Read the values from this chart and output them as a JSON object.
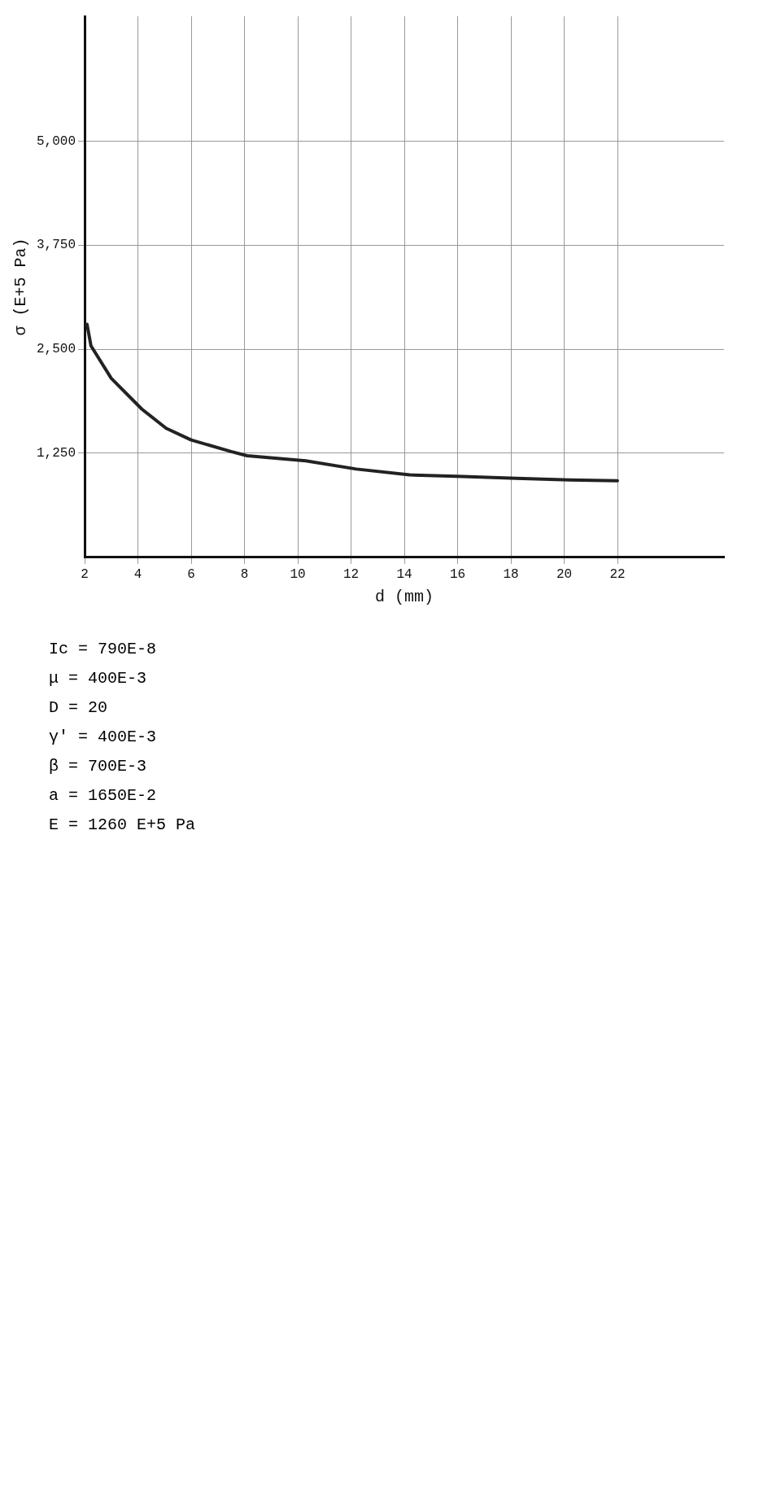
{
  "chart_data": {
    "type": "line",
    "xlabel": "d (mm)",
    "ylabel": "σ (E+5 Pa)",
    "x": [
      2.09,
      2.24,
      3.0,
      4.15,
      5.06,
      6.0,
      7.5,
      8.1,
      10.3,
      12.2,
      14.2,
      16.2,
      18.2,
      20.2,
      22.0
    ],
    "series": [
      {
        "color": "#222222",
        "values": [
          2800,
          2540,
          2150,
          1780,
          1550,
          1410,
          1270,
          1220,
          1160,
          1060,
          990,
          970,
          950,
          930,
          920
        ]
      }
    ],
    "xlim": [
      2,
      26
    ],
    "xticks": [
      2,
      4,
      6,
      8,
      10,
      12,
      14,
      16,
      18,
      20,
      22
    ],
    "ylim": [
      0,
      6500
    ],
    "yticks": [
      {
        "value": 1250,
        "label": "1,250"
      },
      {
        "value": 2500,
        "label": "2,500"
      },
      {
        "value": 3750,
        "label": "3,750"
      },
      {
        "value": 5000,
        "label": "5,000"
      }
    ],
    "grid": true,
    "marker": "none",
    "line_style": "solid",
    "annotations": [
      "Ic = 790E-8",
      "μ = 400E-3",
      "D = 20",
      "γ' = 400E-3",
      "β = 700E-3",
      "a = 1650E-2",
      "E = 1260 E+5 Pa"
    ]
  }
}
